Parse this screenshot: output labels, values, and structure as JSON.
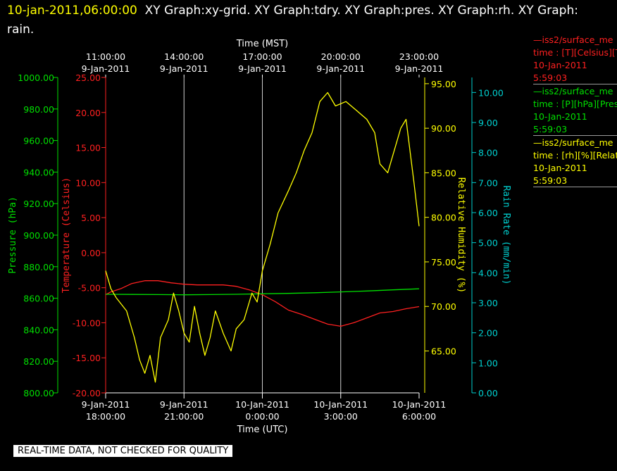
{
  "header": {
    "timestamp": "10-jan-2011,06:00:00",
    "title": "XY Graph:xy-grid.  XY Graph:tdry.  XY Graph:pres.  XY Graph:rh.  XY Graph: rain."
  },
  "notice": "REAL-TIME DATA, NOT CHECKED FOR QUALITY",
  "colors": {
    "background": "#000000",
    "temperature": "#ff2020",
    "pressure": "#00e000",
    "humidity": "#ffff00",
    "rain": "#00d0d0",
    "grid": "#ffffff"
  },
  "legend": [
    {
      "line1": "—iss2/surface_me",
      "line2": "time : [T][Celsius][T",
      "line3": "10-Jan-2011",
      "line4": "5:59:03",
      "color": "#ff2020"
    },
    {
      "line1": "—iss2/surface_me",
      "line2": "time : [P][hPa][Pres",
      "line3": "10-Jan-2011",
      "line4": "5:59:03",
      "color": "#00e000"
    },
    {
      "line1": "—iss2/surface_me",
      "line2": "time : [rh][%][Relati",
      "line3": "10-Jan-2011",
      "line4": "5:59:03",
      "color": "#ffff00"
    }
  ],
  "chart_data": {
    "type": "line",
    "grid": true,
    "x_unit": "hours after 9-Jan-2011 18:00 UTC",
    "xlim": [
      0,
      12
    ],
    "bottom_axis": {
      "label": "Time (UTC)",
      "ticks": [
        {
          "x": 0,
          "line1": "9-Jan-2011",
          "line2": "18:00:00"
        },
        {
          "x": 3,
          "line1": "9-Jan-2011",
          "line2": "21:00:00"
        },
        {
          "x": 6,
          "line1": "10-Jan-2011",
          "line2": "0:00:00"
        },
        {
          "x": 9,
          "line1": "10-Jan-2011",
          "line2": "3:00:00"
        },
        {
          "x": 12,
          "line1": "10-Jan-2011",
          "line2": "6:00:00"
        }
      ]
    },
    "top_axis": {
      "label": "Time (MST)",
      "ticks": [
        {
          "x": 0,
          "line1": "11:00:00",
          "line2": "9-Jan-2011"
        },
        {
          "x": 3,
          "line1": "14:00:00",
          "line2": "9-Jan-2011"
        },
        {
          "x": 6,
          "line1": "17:00:00",
          "line2": "9-Jan-2011"
        },
        {
          "x": 9,
          "line1": "20:00:00",
          "line2": "9-Jan-2011"
        },
        {
          "x": 12,
          "line1": "23:00:00",
          "line2": "9-Jan-2011"
        }
      ]
    },
    "y_axes": [
      {
        "id": "pressure",
        "label": "Pressure (hPa)",
        "color": "#00e000",
        "ylim": [
          800,
          1000
        ],
        "ticks": [
          "800.00",
          "820.00",
          "840.00",
          "860.00",
          "880.00",
          "900.00",
          "920.00",
          "940.00",
          "960.00",
          "980.00",
          "1000.00"
        ]
      },
      {
        "id": "temperature",
        "label": "Temperature (Celsius)",
        "color": "#ff2020",
        "ylim": [
          -20,
          25
        ],
        "ticks": [
          "-20.00",
          "-15.00",
          "-10.00",
          "-5.00",
          "0.00",
          "5.00",
          "10.00",
          "15.00",
          "20.00",
          "25.00"
        ]
      },
      {
        "id": "humidity",
        "label": "Relative Humidity (%)",
        "color": "#ffff00",
        "ylim": [
          60.3,
          95.7
        ],
        "ticks": [
          "65.00",
          "70.00",
          "75.00",
          "80.00",
          "85.00",
          "90.00",
          "95.00"
        ]
      },
      {
        "id": "rain",
        "label": "Rain Rate (mm/min)",
        "color": "#00d0d0",
        "ylim": [
          0,
          10.5
        ],
        "ticks": [
          "0.00",
          "1.00",
          "2.00",
          "3.00",
          "4.00",
          "5.00",
          "6.00",
          "7.00",
          "8.00",
          "9.00",
          "10.00"
        ]
      }
    ],
    "series": [
      {
        "axis": "temperature",
        "color": "#ff2020",
        "x": [
          0,
          0.2,
          0.6,
          1.0,
          1.5,
          2.0,
          2.5,
          3.0,
          3.5,
          4.0,
          4.5,
          5.0,
          5.5,
          6.0,
          6.5,
          7.0,
          7.5,
          8.0,
          8.5,
          9.0,
          9.5,
          10.0,
          10.5,
          11.0,
          11.5,
          12.0
        ],
        "values": [
          -6.0,
          -5.6,
          -5.1,
          -4.4,
          -4.0,
          -4.0,
          -4.3,
          -4.5,
          -4.6,
          -4.6,
          -4.6,
          -4.8,
          -5.3,
          -6.0,
          -7.0,
          -8.2,
          -8.8,
          -9.5,
          -10.2,
          -10.5,
          -10.0,
          -9.3,
          -8.6,
          -8.4,
          -8.0,
          -7.7
        ]
      },
      {
        "axis": "pressure",
        "color": "#00e000",
        "x": [
          0,
          1,
          2,
          3,
          4,
          5,
          6,
          7,
          8,
          9,
          10,
          11,
          12
        ],
        "values": [
          862.5,
          862.4,
          862.3,
          862.2,
          862.3,
          862.5,
          862.8,
          863.1,
          863.5,
          864.0,
          864.6,
          865.3,
          866.0
        ]
      },
      {
        "axis": "humidity",
        "color": "#ffff00",
        "x": [
          0,
          0.2,
          0.4,
          0.8,
          1.1,
          1.3,
          1.5,
          1.7,
          1.9,
          2.1,
          2.4,
          2.6,
          2.8,
          3.0,
          3.2,
          3.4,
          3.6,
          3.8,
          4.0,
          4.2,
          4.5,
          4.8,
          5.0,
          5.3,
          5.6,
          5.8,
          6.0,
          6.3,
          6.6,
          7.0,
          7.3,
          7.6,
          7.9,
          8.2,
          8.5,
          8.8,
          9.2,
          9.6,
          10.0,
          10.3,
          10.5,
          10.8,
          11.0,
          11.3,
          11.5,
          11.8,
          12.0
        ],
        "values": [
          74.0,
          72.0,
          71.0,
          69.5,
          66.5,
          64.0,
          62.5,
          64.5,
          61.5,
          66.5,
          68.5,
          71.5,
          69.5,
          67.0,
          66.0,
          70.0,
          67.0,
          64.5,
          66.5,
          69.5,
          67.0,
          65.0,
          67.5,
          68.5,
          71.5,
          70.5,
          74.0,
          77.0,
          80.5,
          83.0,
          85.0,
          87.5,
          89.5,
          93.0,
          94.0,
          92.5,
          93.0,
          92.0,
          91.0,
          89.5,
          86.0,
          85.0,
          87.0,
          90.0,
          91.0,
          84.0,
          79.0
        ]
      }
    ]
  }
}
